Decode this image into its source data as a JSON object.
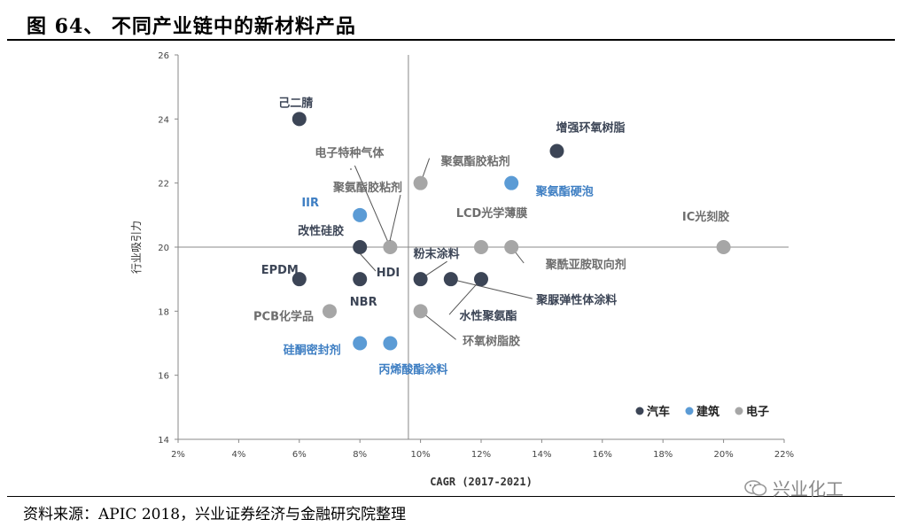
{
  "header": {
    "title": "图 64、 不同产业链中的新材料产品"
  },
  "footer": {
    "source": "资料来源：APIC 2018，兴业证券经济与金融研究院整理"
  },
  "watermark": {
    "text": "兴业化工",
    "icon": "wechat-icon"
  },
  "colors": {
    "汽车": "#3c4556",
    "建筑": "#5b9bd5",
    "电子": "#a6a6a6",
    "label_auto": "#3c4556",
    "label_building": "#3f7fc3",
    "label_electronic": "#6e6e6e"
  },
  "chart_data": {
    "type": "scatter",
    "xlabel": "CAGR (2017-2021)",
    "ylabel": "行业吸引力",
    "xlim": [
      0.02,
      0.22
    ],
    "ylim": [
      14,
      26
    ],
    "xticks": [
      0.02,
      0.04,
      0.06,
      0.08,
      0.1,
      0.12,
      0.14,
      0.16,
      0.18,
      0.2,
      0.22
    ],
    "xtick_labels": [
      "2%",
      "4%",
      "6%",
      "8%",
      "10%",
      "12%",
      "14%",
      "16%",
      "18%",
      "20%",
      "22%"
    ],
    "yticks": [
      14,
      16,
      18,
      20,
      22,
      24,
      26
    ],
    "ytick_labels": [
      "14",
      "16",
      "18",
      "20",
      "22",
      "24",
      "26"
    ],
    "reference_lines": {
      "x": 0.096,
      "y": 20
    },
    "legend": {
      "position": "bottom-right",
      "entries": [
        "汽车",
        "建筑",
        "电子"
      ]
    },
    "series": [
      {
        "name": "汽车",
        "points": [
          {
            "label": "己二腈",
            "x": 0.06,
            "y": 24
          },
          {
            "label": "增强环氧树脂",
            "x": 0.145,
            "y": 23
          },
          {
            "label": "改性硅胶",
            "x": 0.08,
            "y": 20
          },
          {
            "label": "EPDM",
            "x": 0.06,
            "y": 19
          },
          {
            "label": "NBR",
            "x": 0.08,
            "y": 19
          },
          {
            "label": "粉末涂料",
            "x": 0.1,
            "y": 19
          },
          {
            "label": "聚脲弹性体涂料",
            "x": 0.11,
            "y": 19
          },
          {
            "label": "水性聚氨酯",
            "x": 0.12,
            "y": 19
          }
        ]
      },
      {
        "name": "建筑",
        "points": [
          {
            "label": "聚氨酯硬泡",
            "x": 0.13,
            "y": 22
          },
          {
            "label": "IIR",
            "x": 0.08,
            "y": 21
          },
          {
            "label": "硅酮密封剂",
            "x": 0.08,
            "y": 17
          },
          {
            "label": "丙烯酸酯涂料",
            "x": 0.09,
            "y": 17
          }
        ]
      },
      {
        "name": "电子",
        "points": [
          {
            "label": "聚氨酯胶粘剂",
            "x": 0.1,
            "y": 22
          },
          {
            "label": "电子特种气体",
            "x": 0.09,
            "y": 20
          },
          {
            "label": "LCD光学薄膜",
            "x": 0.12,
            "y": 20
          },
          {
            "label": "聚酰亚胺取向剂",
            "x": 0.13,
            "y": 20
          },
          {
            "label": "IC光刻胶",
            "x": 0.2,
            "y": 20
          },
          {
            "label": "PCB化学品",
            "x": 0.07,
            "y": 18
          },
          {
            "label": "环氧树脂胶",
            "x": 0.1,
            "y": 18
          }
        ]
      }
    ],
    "extra_labels": [
      {
        "text": "聚氨酯胶粘剂",
        "series": "电子"
      },
      {
        "text": "HDI",
        "series": "汽车"
      }
    ]
  }
}
